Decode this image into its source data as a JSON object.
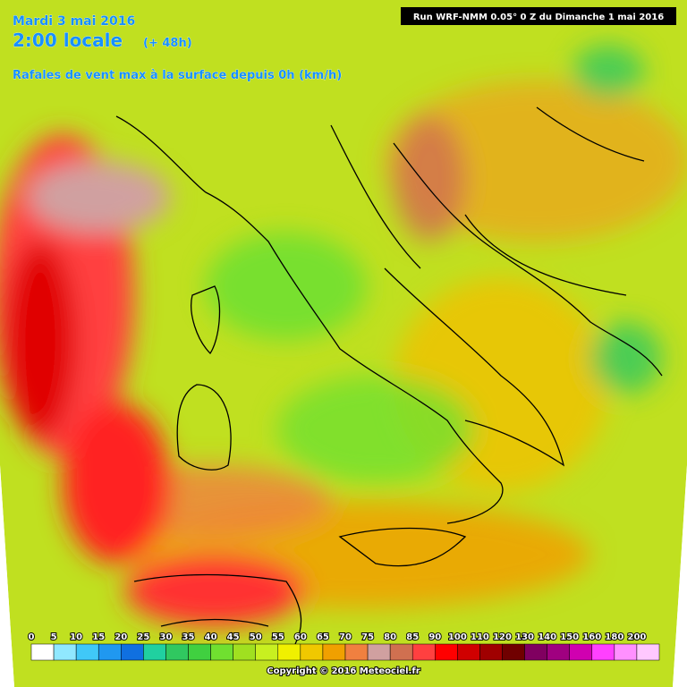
{
  "header": {
    "date": "Mardi 3 mai 2016",
    "time": "2:00 locale",
    "offset": "(+ 48h)",
    "subtitle": "Rafales de vent max à la surface depuis 0h (km/h)",
    "run": "Run WRF-NMM 0.05° 0 Z du Dimanche 1 mai 2016"
  },
  "legend": {
    "values": [
      0,
      5,
      10,
      15,
      20,
      25,
      30,
      35,
      40,
      45,
      50,
      55,
      60,
      65,
      70,
      75,
      80,
      85,
      90,
      100,
      110,
      120,
      130,
      140,
      150,
      160,
      180,
      200
    ],
    "colors": [
      "#ffffff",
      "#90e8ff",
      "#40c8f8",
      "#2098f0",
      "#1070e0",
      "#20d0a0",
      "#30c860",
      "#40d040",
      "#70e030",
      "#a0e020",
      "#c8f020",
      "#f0f000",
      "#f0c800",
      "#f0a000",
      "#f08040",
      "#d0a0a0",
      "#d07050",
      "#ff4040",
      "#ff0000",
      "#d00000",
      "#a00000",
      "#700000",
      "#800060",
      "#a00080",
      "#d000b0",
      "#ff40ff",
      "#ff90ff",
      "#ffc8ff"
    ]
  },
  "footer": {
    "copyright": "Copyright © 2016 Meteociel.fr"
  }
}
